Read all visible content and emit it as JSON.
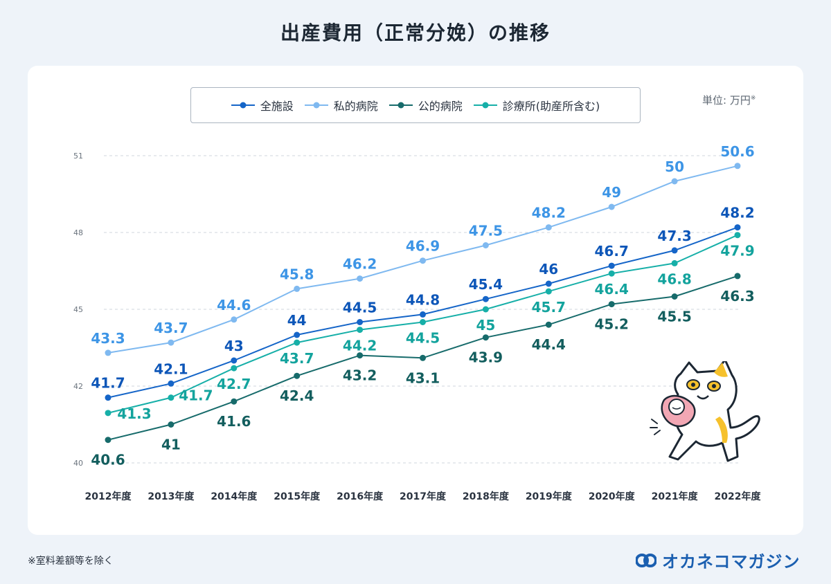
{
  "title": "出産費用（正常分娩）の推移",
  "unit_label": "単位: 万円",
  "unit_mark": "※",
  "footnote": "※室料差額等を除く",
  "brand": "オカネコマガジン",
  "legend": [
    {
      "name": "全施設",
      "color": "#1565c8"
    },
    {
      "name": "私的病院",
      "color": "#7fb9f0"
    },
    {
      "name": "公的病院",
      "color": "#176b6b"
    },
    {
      "name": "診療所(助産所含む)",
      "color": "#16afa8"
    }
  ],
  "chart_data": {
    "type": "line",
    "categories": [
      "2012年度",
      "2013年度",
      "2014年度",
      "2015年度",
      "2016年度",
      "2017年度",
      "2018年度",
      "2019年度",
      "2020年度",
      "2021年度",
      "2022年度"
    ],
    "y_ticks": [
      40,
      42,
      45,
      48,
      51
    ],
    "ylim": [
      40,
      51.6
    ],
    "grid": true,
    "legend_position": "top-center",
    "series": [
      {
        "name": "私的病院",
        "color": "#7fb9f0",
        "label_color": "#3d95e6",
        "values": [
          43.3,
          43.7,
          44.6,
          45.8,
          46.2,
          46.9,
          47.5,
          48.2,
          49,
          50,
          50.6
        ]
      },
      {
        "name": "全施設",
        "color": "#1565c8",
        "label_color": "#0d56b8",
        "values": [
          41.7,
          42.1,
          43,
          44,
          44.5,
          44.8,
          45.4,
          46,
          46.7,
          47.3,
          48.2
        ]
      },
      {
        "name": "診療所(助産所含む)",
        "color": "#16afa8",
        "label_color": "#13a39d",
        "values": [
          41.3,
          41.7,
          42.7,
          43.7,
          44.2,
          44.5,
          45,
          45.7,
          46.4,
          46.8,
          47.9
        ]
      },
      {
        "name": "公的病院",
        "color": "#176b6b",
        "label_color": "#135e5e",
        "values": [
          40.6,
          41,
          41.6,
          42.4,
          43.2,
          43.1,
          43.9,
          44.4,
          45.2,
          45.5,
          46.3
        ]
      }
    ]
  }
}
